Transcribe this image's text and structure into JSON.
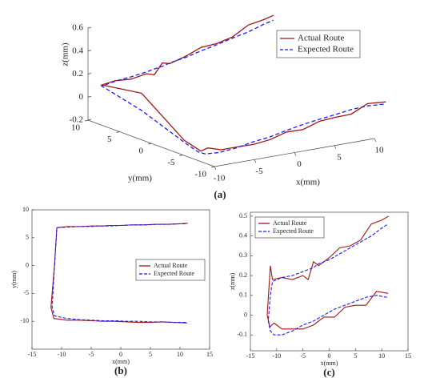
{
  "chart_data": [
    {
      "type": "line3d",
      "label": "(a)",
      "xlabel": "x(mm)",
      "ylabel": "y(mm)",
      "zlabel": "z(mm)",
      "xlim": [
        -10,
        10
      ],
      "ylim": [
        -10,
        10
      ],
      "zlim": [
        -0.2,
        0.6
      ],
      "xticks": [
        -10,
        -5,
        0,
        5,
        10
      ],
      "yticks": [
        -10,
        -5,
        0,
        5,
        10
      ],
      "zticks": [
        -0.2,
        0,
        0.2,
        0.4,
        0.6
      ],
      "legend": "upper right",
      "series": [
        {
          "name": "Actual Route",
          "color": "#a31515",
          "linestyle": "solid",
          "x": [
            11.2,
            9,
            7,
            5,
            3,
            1,
            -1,
            -3,
            -5,
            -7,
            -9,
            -10.5,
            -11.3,
            -11.8,
            -11.2,
            -10.8,
            -9,
            -7,
            -5,
            -4,
            -3,
            -2,
            0,
            2,
            4,
            6,
            8,
            10,
            11.3
          ],
          "y": [
            -10.3,
            -10.2,
            -10.1,
            -10.2,
            -10.2,
            -10.1,
            -10,
            -10,
            -9.9,
            -9.8,
            -9.8,
            -9.6,
            -9.5,
            -7.5,
            0,
            6.8,
            7,
            7,
            7.1,
            7.1,
            7.1,
            7.2,
            7.2,
            7.3,
            7.3,
            7.4,
            7.4,
            7.5,
            7.6
          ],
          "z": [
            0.11,
            0.12,
            0.05,
            0.05,
            0.04,
            -0.01,
            -0.01,
            -0.05,
            -0.07,
            -0.07,
            -0.07,
            -0.04,
            -0.06,
            0,
            0.25,
            0.18,
            0.19,
            0.18,
            0.2,
            0.18,
            0.27,
            0.25,
            0.29,
            0.34,
            0.35,
            0.38,
            0.46,
            0.48,
            0.5
          ]
        },
        {
          "name": "Expected Route",
          "color": "#1a1aff",
          "linestyle": "dashed",
          "x": [
            11,
            9,
            7,
            5,
            3,
            1,
            -1,
            -3,
            -5,
            -7,
            -9,
            -10.5,
            -11.2,
            -11.6,
            -11.2,
            -10.8,
            -9,
            -7,
            -5,
            -4,
            -3,
            -2,
            0,
            2,
            4,
            6,
            8,
            10,
            11.2
          ],
          "y": [
            -10.2,
            -10.2,
            -10.1,
            -10.1,
            -10,
            -10,
            -9.9,
            -9.9,
            -9.8,
            -9.7,
            -9.5,
            -9.2,
            -9,
            -7.5,
            0,
            6.8,
            6.9,
            7,
            7,
            7.1,
            7.1,
            7.1,
            7.2,
            7.3,
            7.3,
            7.4,
            7.4,
            7.5,
            7.5
          ],
          "z": [
            0.09,
            0.1,
            0.09,
            0.07,
            0.05,
            0.03,
            0,
            -0.03,
            -0.05,
            -0.08,
            -0.1,
            -0.1,
            -0.08,
            -0.03,
            0.1,
            0.17,
            0.19,
            0.2,
            0.22,
            0.23,
            0.24,
            0.26,
            0.28,
            0.31,
            0.34,
            0.37,
            0.4,
            0.44,
            0.46
          ]
        }
      ]
    },
    {
      "type": "line",
      "label": "(b)",
      "xlabel": "x(mm)",
      "ylabel": "y(mm)",
      "xlim": [
        -15,
        15
      ],
      "ylim": [
        -15,
        10
      ],
      "xticks": [
        -15,
        -10,
        -5,
        0,
        5,
        10,
        15
      ],
      "yticks": [
        -10,
        -5,
        0,
        5,
        10
      ],
      "legend": "center right",
      "series": [
        {
          "name": "Actual Route",
          "color": "#a31515",
          "linestyle": "solid",
          "x": [
            11.2,
            9,
            7,
            5,
            3,
            1,
            -1,
            -3,
            -5,
            -7,
            -9,
            -10.5,
            -11.3,
            -11.8,
            -11.2,
            -10.8,
            -9,
            -7,
            -5,
            -4,
            -3,
            -2,
            0,
            2,
            4,
            6,
            8,
            10,
            11.3
          ],
          "values": [
            -10.3,
            -10.2,
            -10.1,
            -10.2,
            -10.2,
            -10.1,
            -10,
            -10,
            -9.9,
            -9.8,
            -9.8,
            -9.6,
            -9.5,
            -7.5,
            0,
            6.8,
            7,
            7,
            7.1,
            7.1,
            7.1,
            7.2,
            7.2,
            7.3,
            7.3,
            7.4,
            7.4,
            7.5,
            7.6
          ]
        },
        {
          "name": "Expected Route",
          "color": "#1a1aff",
          "linestyle": "dashed",
          "x": [
            11,
            9,
            7,
            5,
            3,
            1,
            -1,
            -3,
            -5,
            -7,
            -9,
            -10.5,
            -11.2,
            -11.6,
            -11.2,
            -10.8,
            -9,
            -7,
            -5,
            -4,
            -3,
            -2,
            0,
            2,
            4,
            6,
            8,
            10,
            11.2
          ],
          "values": [
            -10.2,
            -10.2,
            -10.1,
            -10.1,
            -10,
            -10,
            -9.9,
            -9.9,
            -9.8,
            -9.7,
            -9.5,
            -9.2,
            -9,
            -7.5,
            0,
            6.8,
            6.9,
            7,
            7,
            7.1,
            7.1,
            7.1,
            7.2,
            7.3,
            7.3,
            7.4,
            7.4,
            7.5,
            7.5
          ]
        }
      ]
    },
    {
      "type": "line",
      "label": "(c)",
      "xlabel": "x(mm)",
      "ylabel": "z(mm)",
      "xlim": [
        -15,
        15
      ],
      "ylim": [
        -0.18,
        0.52
      ],
      "xticks": [
        -15,
        -10,
        -5,
        0,
        5,
        10,
        15
      ],
      "yticks": [
        -0.1,
        0,
        0.1,
        0.2,
        0.3,
        0.4,
        0.5
      ],
      "legend": "upper left",
      "series": [
        {
          "name": "Actual Route",
          "color": "#a31515",
          "linestyle": "solid",
          "x": [
            11.2,
            9,
            7,
            5,
            3,
            1,
            -1,
            -3,
            -5,
            -7,
            -9,
            -10.5,
            -11.3,
            -11.8,
            -11.2,
            -10.8,
            -9,
            -7,
            -5,
            -4,
            -3,
            -2,
            0,
            2,
            4,
            6,
            8,
            10,
            11.3
          ],
          "values": [
            0.11,
            0.12,
            0.05,
            0.05,
            0.04,
            -0.01,
            -0.01,
            -0.05,
            -0.07,
            -0.07,
            -0.07,
            -0.04,
            -0.06,
            0,
            0.25,
            0.18,
            0.19,
            0.18,
            0.2,
            0.18,
            0.27,
            0.25,
            0.29,
            0.34,
            0.35,
            0.38,
            0.46,
            0.48,
            0.5
          ]
        },
        {
          "name": "Expected Route",
          "color": "#1a1aff",
          "linestyle": "dashed",
          "x": [
            11,
            9,
            7,
            5,
            3,
            1,
            -1,
            -3,
            -5,
            -7,
            -9,
            -10.5,
            -11.2,
            -11.6,
            -11.2,
            -10.8,
            -9,
            -7,
            -5,
            -4,
            -3,
            -2,
            0,
            2,
            4,
            6,
            8,
            10,
            11.2
          ],
          "values": [
            0.09,
            0.1,
            0.09,
            0.07,
            0.05,
            0.03,
            0,
            -0.03,
            -0.05,
            -0.08,
            -0.1,
            -0.1,
            -0.08,
            -0.03,
            0.1,
            0.17,
            0.19,
            0.2,
            0.22,
            0.23,
            0.24,
            0.26,
            0.28,
            0.31,
            0.34,
            0.37,
            0.4,
            0.44,
            0.46
          ]
        }
      ]
    }
  ]
}
